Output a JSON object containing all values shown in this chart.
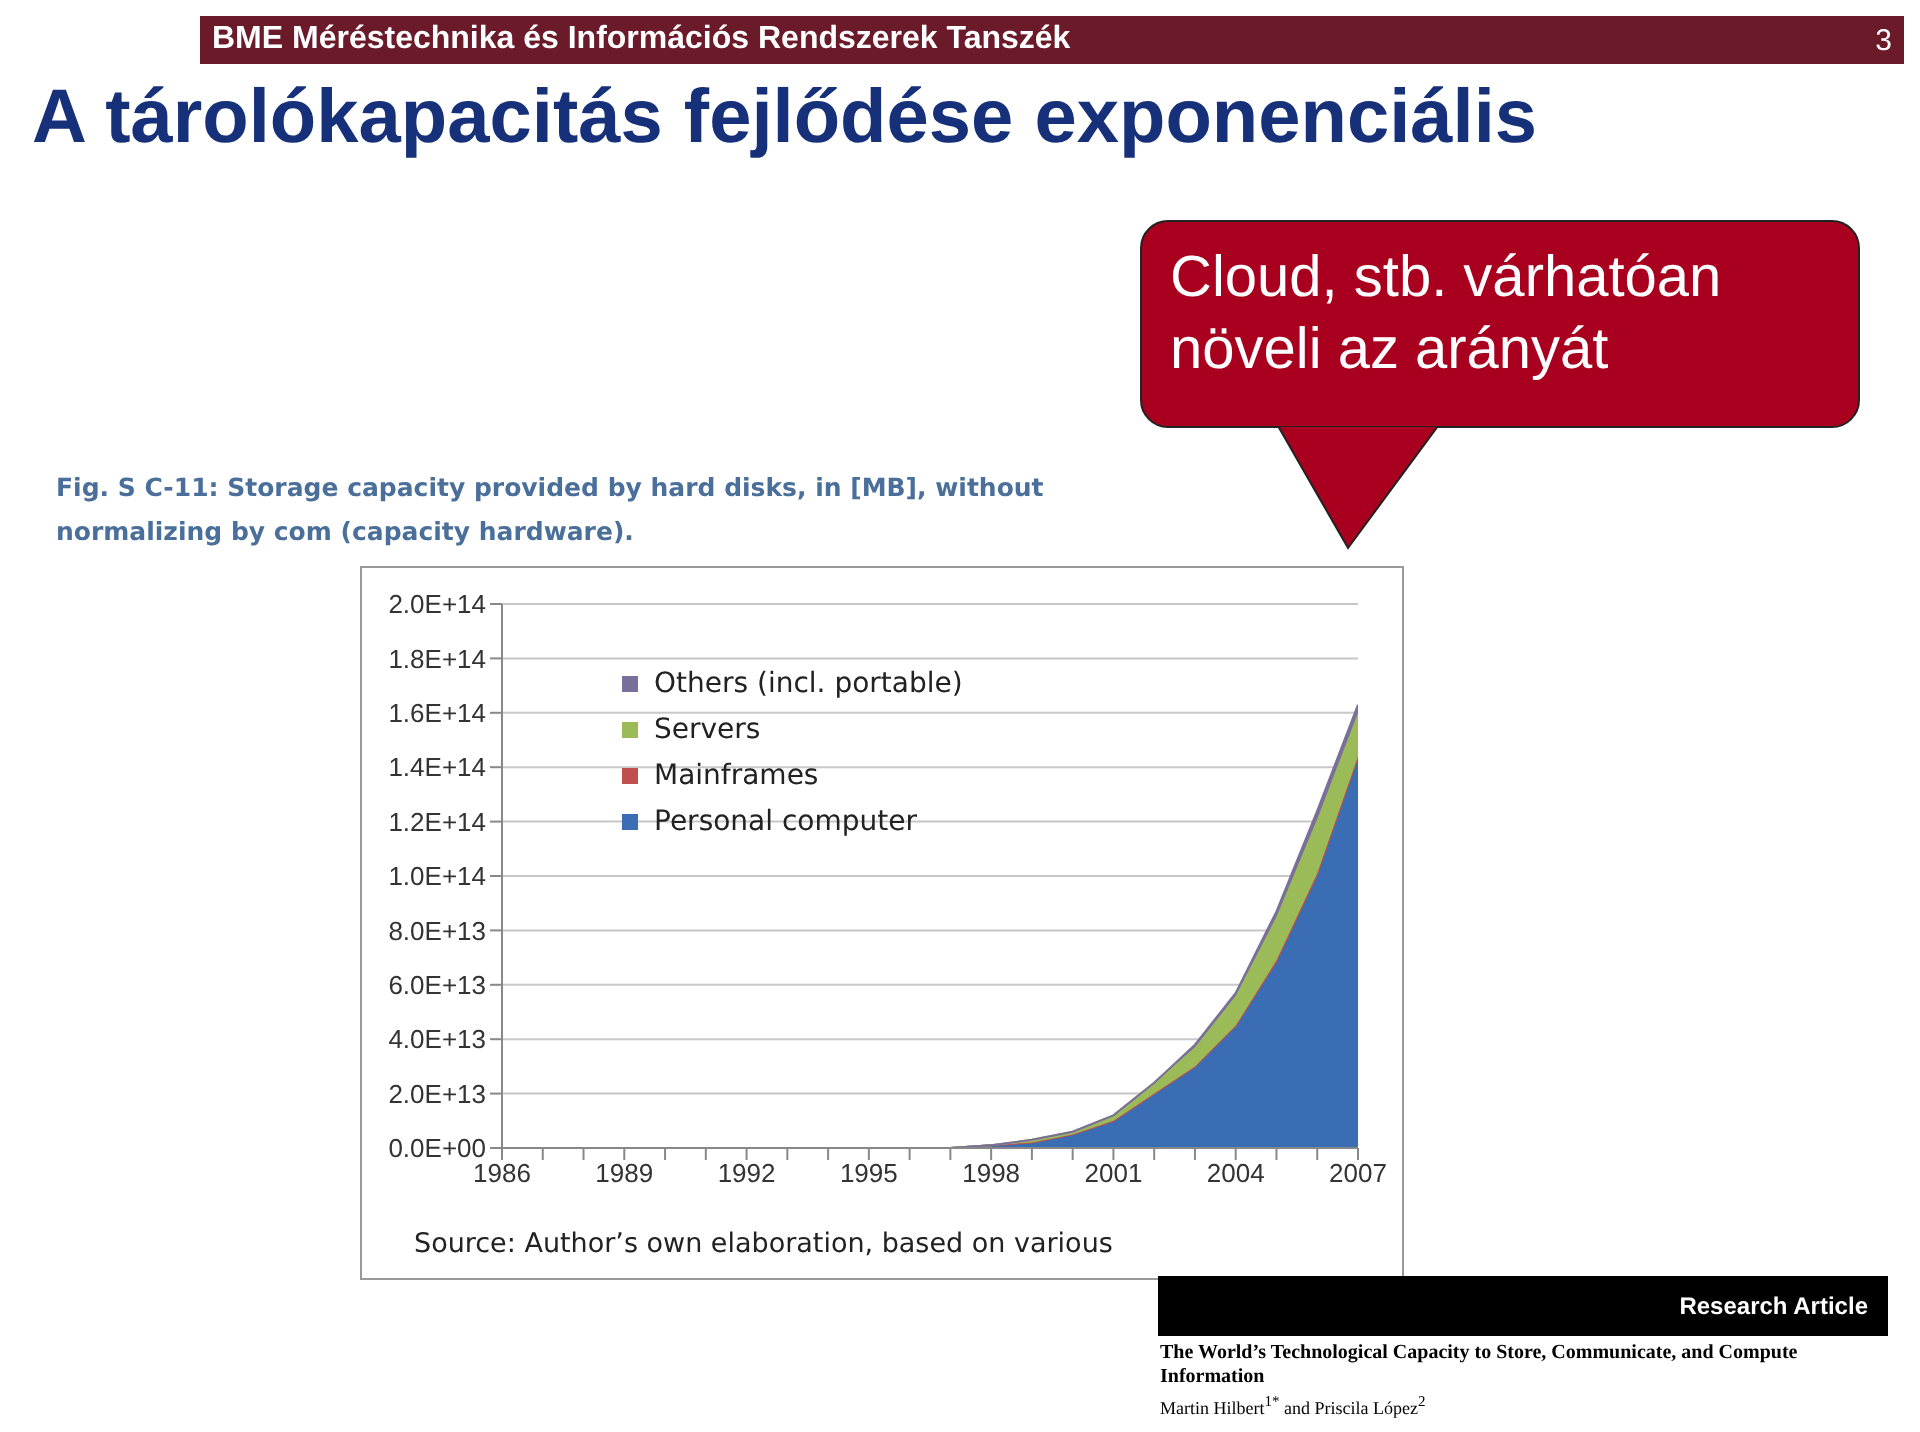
{
  "chart_data": {
    "type": "area",
    "stacked": true,
    "title": "A tárolókapacitás fejlődése exponenciális",
    "subtitle": "Fig. S C-11: Storage capacity provided by hard disks, in [MB], without normalizing by com (capacity hardware).",
    "annotations": [
      "BME Méréstechnika és Információs Rendszerek Tanszék",
      "3",
      "Cloud, stb. várhatóan növeli az arányát",
      "Source: Author’s own elaboration, based on various",
      "Research Article",
      "The World’s Technological Capacity to Store, Communicate, and Compute Information",
      "Martin Hilbert$^{1*}$ and Priscila López$^{2}$"
    ],
    "x": [
      1986,
      1987,
      1988,
      1989,
      1990,
      1991,
      1992,
      1993,
      1994,
      1995,
      1996,
      1997,
      1998,
      1999,
      2000,
      2001,
      2002,
      2003,
      2004,
      2005,
      2006,
      2007
    ],
    "series": [
      {
        "name": "Personal computer",
        "color": "#3a6db3",
        "values": [
          0,
          0,
          0,
          0,
          0,
          0,
          0,
          0,
          0,
          0,
          0,
          0,
          1000000000000.0,
          2000000000000.0,
          5000000000000.0,
          10000000000000.0,
          20000000000000.0,
          30000000000000.0,
          45000000000000.0,
          68000000000000.0,
          100000000000000.0,
          143000000000000.0
        ]
      },
      {
        "name": "Mainframes",
        "color": "#c0504d",
        "values": [
          0,
          0,
          0,
          0,
          0,
          0,
          0,
          0,
          0,
          0,
          0,
          0,
          0,
          0,
          0,
          0,
          0,
          0,
          0,
          1000000000000.0,
          1000000000000.0,
          1000000000000.0
        ]
      },
      {
        "name": "Servers",
        "color": "#9bbb59",
        "values": [
          0,
          0,
          0,
          0,
          0,
          0,
          0,
          0,
          0,
          0,
          0,
          0,
          0,
          1000000000000.0,
          1000000000000.0,
          2000000000000.0,
          4000000000000.0,
          7000000000000.0,
          11000000000000.0,
          16000000000000.0,
          20000000000000.0,
          16000000000000.0
        ]
      },
      {
        "name": "Others (incl. portable)",
        "color": "#7a6f9b",
        "values": [
          0,
          0,
          0,
          0,
          0,
          0,
          0,
          0,
          0,
          0,
          0,
          0,
          0,
          0,
          0,
          0,
          0,
          1000000000000.0,
          1000000000000.0,
          2000000000000.0,
          3000000000000.0,
          3000000000000.0
        ]
      }
    ],
    "xlim": [
      1986,
      2007
    ],
    "xticks": [
      1986,
      {
        "value": 1987,
        "label": null
      },
      {
        "value": 1988,
        "label": null
      },
      1989,
      {
        "value": 1990,
        "label": null
      },
      {
        "value": 1991,
        "label": null
      },
      1992,
      {
        "value": 1993,
        "label": null
      },
      {
        "value": 1994,
        "label": null
      },
      1995,
      {
        "value": 1996,
        "label": null
      },
      {
        "value": 1997,
        "label": null
      },
      1998,
      {
        "value": 1999,
        "label": null
      },
      {
        "value": 2000,
        "label": null
      },
      2001,
      {
        "value": 2002,
        "label": null
      },
      {
        "value": 2003,
        "label": null
      },
      2004,
      {
        "value": 2005,
        "label": null
      },
      {
        "value": 2006,
        "label": null
      },
      2007
    ],
    "ylim": [
      0,
      200000000000000.0
    ],
    "yticks": [
      {
        "value": 0,
        "label": "0.0E+00"
      },
      {
        "value": 20000000000000.0,
        "label": "2.0E+13"
      },
      {
        "value": 40000000000000.0,
        "label": "4.0E+13"
      },
      {
        "value": 60000000000000.0,
        "label": "6.0E+13"
      },
      {
        "value": 80000000000000.0,
        "label": "8.0E+13"
      },
      {
        "value": 100000000000000.0,
        "label": "1.0E+14"
      },
      {
        "value": 120000000000000.0,
        "label": "1.2E+14"
      },
      {
        "value": 140000000000000.0,
        "label": "1.4E+14"
      },
      {
        "value": 160000000000000.0,
        "label": "1.6E+14"
      },
      {
        "value": 180000000000000.0,
        "label": "1.8E+14"
      },
      {
        "value": 200000000000000.0,
        "label": "2.0E+14"
      }
    ],
    "grid": "y",
    "legend": "top left"
  }
}
